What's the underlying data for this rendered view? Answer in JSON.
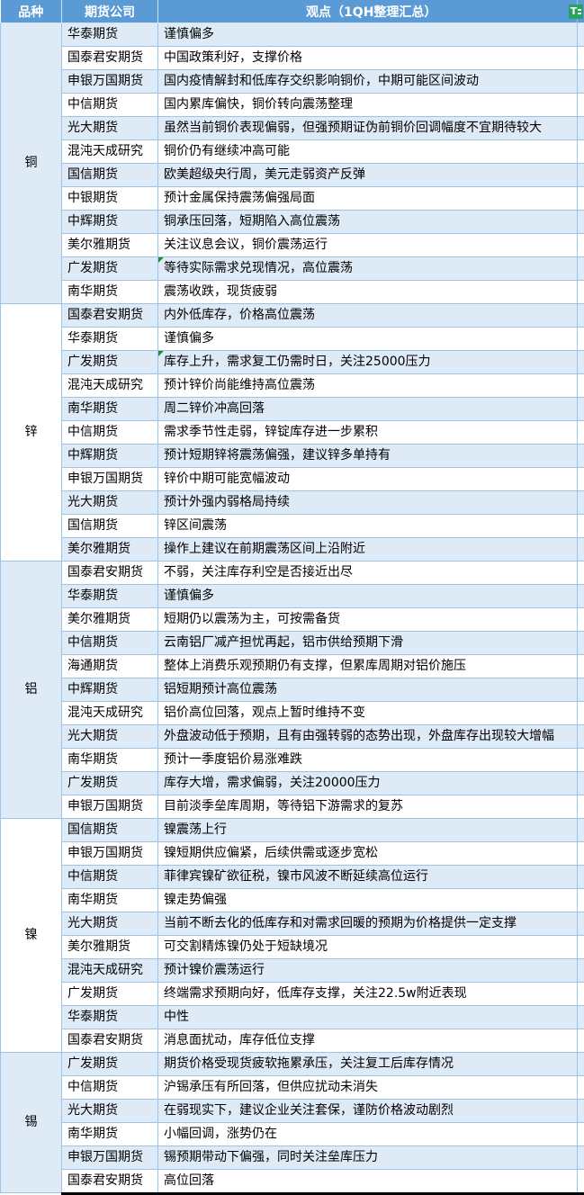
{
  "header": {
    "variety": "品种",
    "company": "期货公司",
    "view": "观点（1QH整理汇总）"
  },
  "corner_icon": {
    "label": "T",
    "name": "table-tool-icon"
  },
  "colors": {
    "header_bg": "#5B9BD5",
    "band_row": "#DEEAF6",
    "plain_row": "#FFFFFF",
    "grid_border": "#9DC3E6",
    "comment_marker": "#1E8E3E",
    "corner_icon_bg": "#27A25F",
    "bottom_rule": "#000000"
  },
  "groups": [
    {
      "variety": "铜",
      "rows": [
        {
          "company": "华泰期货",
          "view": "谨慎偏多"
        },
        {
          "company": "国泰君安期货",
          "view": "中国政策利好，支撑价格"
        },
        {
          "company": "申银万国期货",
          "view": "国内疫情解封和低库存交织影响铜价，中期可能区间波动"
        },
        {
          "company": "中信期货",
          "view": "国内累库偏快，铜价转向震荡整理"
        },
        {
          "company": "光大期货",
          "view": "虽然当前铜价表现偏弱，但强预期证伪前铜价回调幅度不宜期待较大"
        },
        {
          "company": "混沌天成研究",
          "view": "铜价仍有继续冲高可能"
        },
        {
          "company": "国信期货",
          "view": "欧美超级央行周，美元走弱资产反弹"
        },
        {
          "company": "中银期货",
          "view": "预计金属保持震荡偏强局面"
        },
        {
          "company": "中辉期货",
          "view": "铜承压回落，短期陷入高位震荡"
        },
        {
          "company": "美尔雅期货",
          "view": "关注议息会议，铜价震荡运行"
        },
        {
          "company": "广发期货",
          "view": "等待实际需求兑现情况，高位震荡",
          "marker": true
        },
        {
          "company": "南华期货",
          "view": "震荡收跌，现货疲弱"
        }
      ]
    },
    {
      "variety": "锌",
      "rows": [
        {
          "company": "国泰君安期货",
          "view": "内外低库存，价格高位震荡"
        },
        {
          "company": "华泰期货",
          "view": "谨慎偏多"
        },
        {
          "company": "广发期货",
          "view": "库存上升，需求复工仍需时日，关注25000压力",
          "marker": true
        },
        {
          "company": "混沌天成研究",
          "view": "预计锌价尚能维持高位震荡"
        },
        {
          "company": "南华期货",
          "view": "周二锌价冲高回落"
        },
        {
          "company": "中信期货",
          "view": "需求季节性走弱，锌锭库存进一步累积"
        },
        {
          "company": "中辉期货",
          "view": "预计短期锌将震荡偏强，建议锌多单持有"
        },
        {
          "company": "申银万国期货",
          "view": "锌价中期可能宽幅波动"
        },
        {
          "company": "光大期货",
          "view": "预计外强内弱格局持续"
        },
        {
          "company": "国信期货",
          "view": "锌区间震荡"
        },
        {
          "company": "美尔雅期货",
          "view": "操作上建议在前期震荡区间上沿附近"
        }
      ]
    },
    {
      "variety": "铝",
      "rows": [
        {
          "company": "国泰君安期货",
          "view": "不弱，关注库存利空是否接近出尽"
        },
        {
          "company": "华泰期货",
          "view": "谨慎偏多"
        },
        {
          "company": "美尔雅期货",
          "view": "短期仍以震荡为主，可按需备货"
        },
        {
          "company": "中信期货",
          "view": "云南铝厂减产担忧再起，铝市供给预期下滑"
        },
        {
          "company": "海通期货",
          "view": "整体上消费乐观预期仍有支撑，但累库周期对铝价施压"
        },
        {
          "company": "中辉期货",
          "view": "铝短期预计高位震荡"
        },
        {
          "company": "混沌天成研究",
          "view": "铝价高位回落，观点上暂时维持不变"
        },
        {
          "company": "光大期货",
          "view": "外盘波动低于预期，且有由强转弱的态势出现，外盘库存出现较大增幅"
        },
        {
          "company": "南华期货",
          "view": "预计一季度铝价易涨难跌"
        },
        {
          "company": "广发期货",
          "view": "库存大增，需求偏弱，关注20000压力"
        },
        {
          "company": "申银万国期货",
          "view": "目前淡季垒库周期，等待铝下游需求的复苏"
        }
      ]
    },
    {
      "variety": "镍",
      "rows": [
        {
          "company": "国信期货",
          "view": "镍震荡上行"
        },
        {
          "company": "申银万国期货",
          "view": "镍短期供应偏紧，后续供需或逐步宽松"
        },
        {
          "company": "中信期货",
          "view": "菲律宾镍矿欲征税，镍市风波不断延续高位运行"
        },
        {
          "company": "南华期货",
          "view": "镍走势偏强"
        },
        {
          "company": "光大期货",
          "view": "当前不断去化的低库存和对需求回暖的预期为价格提供一定支撑"
        },
        {
          "company": "美尔雅期货",
          "view": "可交割精炼镍仍处于短缺境况"
        },
        {
          "company": "混沌天成研究",
          "view": "预计镍价震荡运行"
        },
        {
          "company": "广发期货",
          "view": "终端需求预期向好，低库存支撑，关注22.5w附近表现"
        },
        {
          "company": "华泰期货",
          "view": "中性"
        },
        {
          "company": "国泰君安期货",
          "view": "消息面扰动，库存低位支撑"
        }
      ]
    },
    {
      "variety": "锡",
      "rows": [
        {
          "company": "广发期货",
          "view": "期货价格受现货疲软拖累承压，关注复工后库存情况"
        },
        {
          "company": "中信期货",
          "view": "沪锡承压有所回落，但供应扰动未消失"
        },
        {
          "company": "光大期货",
          "view": "在弱现实下，建议企业关注套保，谨防价格波动剧烈"
        },
        {
          "company": "南华期货",
          "view": "小幅回调，涨势仍在"
        },
        {
          "company": "申银万国期货",
          "view": "锡预期带动下偏强，同时关注垒库压力"
        },
        {
          "company": "国泰君安期货",
          "view": "高位回落"
        }
      ]
    }
  ]
}
